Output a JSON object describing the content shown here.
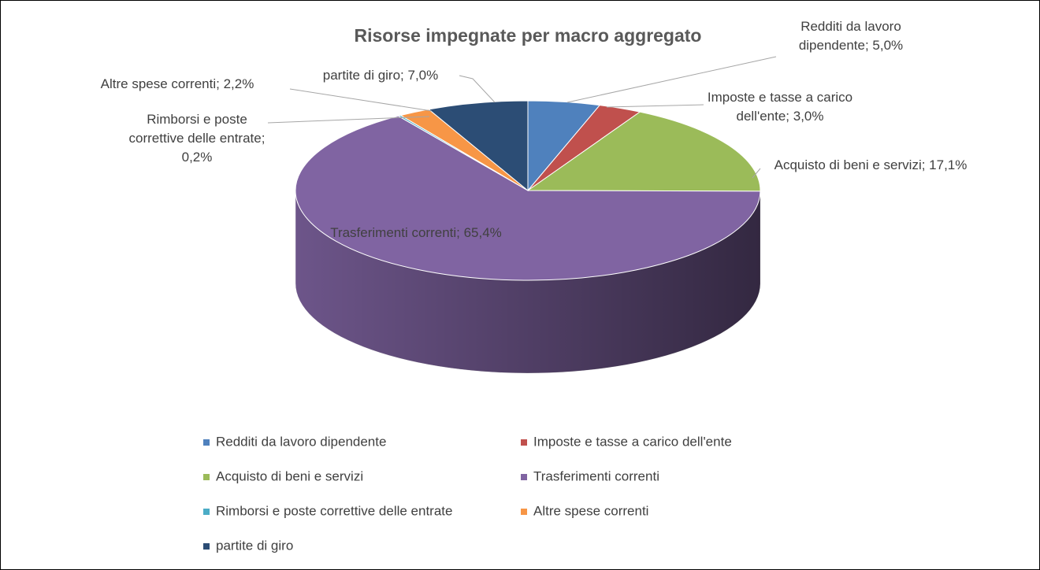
{
  "chart_data": {
    "type": "pie",
    "title": "Risorse impegnate per macro aggregato",
    "categories": [
      "Redditi da lavoro dipendente",
      "Imposte e tasse a carico dell'ente",
      "Acquisto di beni e servizi",
      "Trasferimenti correnti",
      "Rimborsi e poste correttive delle entrate",
      "Altre spese correnti",
      "partite di giro"
    ],
    "values": [
      5.0,
      3.0,
      17.1,
      65.4,
      0.2,
      2.2,
      7.0
    ],
    "value_labels": [
      "Redditi da lavoro dipendente; 5,0%",
      "Imposte e tasse a carico dell'ente; 3,0%",
      "Acquisto di beni e servizi; 17,1%",
      "Trasferimenti correnti; 65,4%",
      "Rimborsi e poste correttive delle entrate; 0,2%",
      "Altre spese correnti; 2,2%",
      "partite di giro; 7,0%"
    ],
    "colors": [
      "#4f81bd",
      "#c0504d",
      "#9bbb59",
      "#8064a2",
      "#4bacc6",
      "#f79646",
      "#2c4d75"
    ],
    "legend": "bottom"
  }
}
